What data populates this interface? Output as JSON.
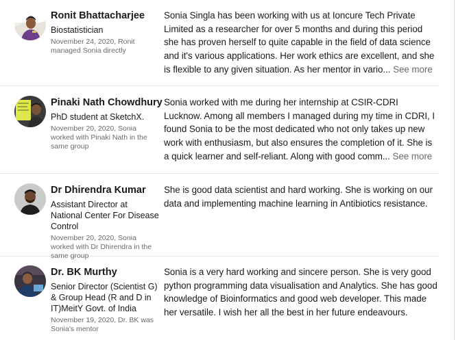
{
  "recommendations": [
    {
      "name": "Ronit Bhattacharjee",
      "headline": "Biostatistician",
      "meta": "November 24, 2020, Ronit managed Sonia directly",
      "text": "Sonia Singla has been working with us at Ioncure Tech Private Limited as a researcher for over 5 months and during this period she has proven herself to quite capable in the field of data science and it's various applications. Her work ethics are excellent, and she is flexible to any given situation. As her mentor in vario...",
      "see_more": "See more"
    },
    {
      "name": "Pinaki Nath Chowdhury",
      "headline": "PhD student at SketchX.",
      "meta": "November 20, 2020, Sonia worked with Pinaki Nath in the same group",
      "text": "Sonia worked with me during her internship at CSIR-CDRI Lucknow. Among all members I managed during my time in CDRI, I found Sonia to be the most dedicated who not only takes up new work with enthusiasm, but also ensures the completion of it. She is a quick learner and self-reliant. Along with good comm...",
      "see_more": "See more"
    },
    {
      "name": "Dr Dhirendra Kumar",
      "headline": "Assistant Director at National Center For Disease Control",
      "meta": "November 20, 2020, Sonia worked with Dr Dhirendra in the same group",
      "text": "She is good data scientist and hard working. She is working on our data and implementing machine learning in Antibiotics resistance."
    },
    {
      "name": "Dr. BK Murthy",
      "headline": "Senior Director (Scientist G) & Group Head (R and D in IT)MeitY Govt. of India",
      "meta": "November 19, 2020, Dr. BK was Sonia's mentor",
      "text": "Sonia is a very hard working and sincere person. She is very good python programming data visualisation and Analytics. She has good knowledge of Bioinformatics and good web developer. This made her versatile. I wish her all the best in her future endeavours."
    }
  ],
  "colors": {
    "primary_text": "#1d1d1d",
    "secondary_text": "#666666",
    "divider": "#e6e6e6"
  }
}
